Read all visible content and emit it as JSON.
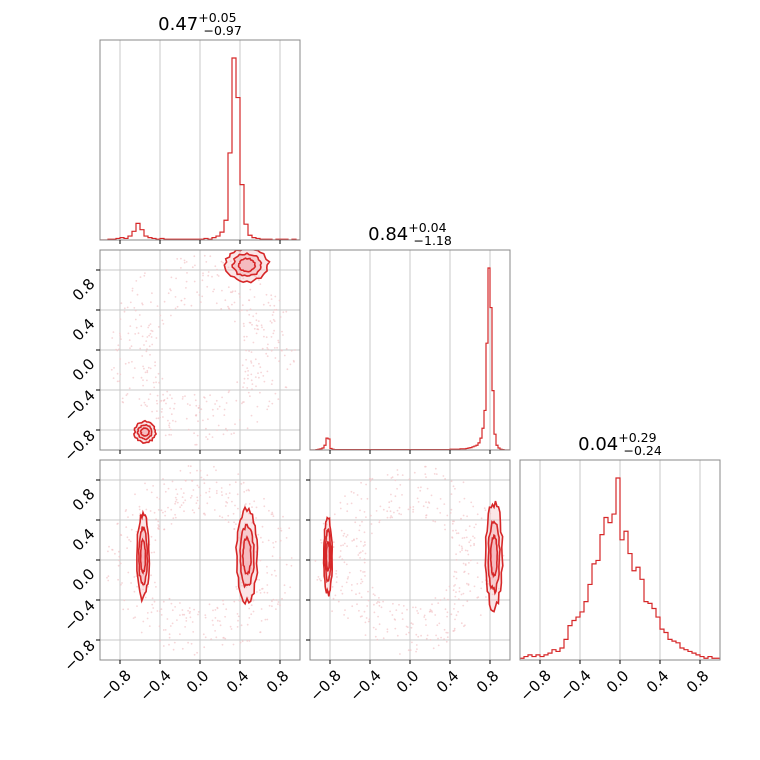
{
  "chart_data": {
    "type": "corner",
    "color": "#d62728",
    "fill_color": "#f4b6b9",
    "grid": true,
    "axis_range": [
      -1,
      1
    ],
    "ticks": [
      -0.8,
      -0.4,
      0.0,
      0.4,
      0.8
    ],
    "tick_labels": [
      "−0.8",
      "−0.4",
      "0.0",
      "0.4",
      "0.8"
    ],
    "diagonal": [
      {
        "title_value": "0.47",
        "title_plus": "+0.05",
        "title_minus": "−0.97",
        "bin_edges_start": -1.0,
        "bin_width": 0.04,
        "counts": [
          0,
          0,
          1,
          1,
          2,
          3,
          2,
          5,
          11,
          21,
          13,
          5,
          3,
          2,
          1,
          2,
          1,
          1,
          1,
          1,
          1,
          1,
          1,
          1,
          1,
          1,
          2,
          1,
          3,
          5,
          10,
          25,
          110,
          230,
          180,
          70,
          20,
          6,
          3,
          2,
          1,
          1,
          1,
          0,
          1,
          1,
          1,
          0,
          1,
          0
        ]
      },
      {
        "title_value": "0.84",
        "title_plus": "+0.04",
        "title_minus": "−1.18",
        "bin_edges_start": -1.0,
        "bin_width": 0.02,
        "counts": [
          0,
          0,
          0,
          1,
          2,
          3,
          5,
          12,
          30,
          28,
          4,
          2,
          1,
          1,
          1,
          1,
          1,
          1,
          1,
          1,
          1,
          1,
          1,
          1,
          1,
          1,
          1,
          1,
          1,
          1,
          1,
          1,
          1,
          1,
          1,
          1,
          1,
          1,
          1,
          1,
          1,
          1,
          1,
          1,
          1,
          1,
          1,
          1,
          1,
          1,
          1,
          1,
          1,
          1,
          1,
          1,
          1,
          1,
          1,
          1,
          1,
          1,
          1,
          1,
          1,
          1,
          1,
          1,
          1,
          1,
          2,
          2,
          2,
          2,
          2,
          3,
          3,
          3,
          4,
          5,
          6,
          8,
          10,
          12,
          18,
          30,
          55,
          100,
          270,
          460,
          360,
          150,
          40,
          12,
          5,
          2,
          1,
          0,
          0,
          0
        ]
      },
      {
        "title_value": "0.04",
        "title_plus": "+0.29",
        "title_minus": "−0.24",
        "bin_edges_start": -1.0,
        "bin_width": 0.04,
        "counts": [
          1,
          2,
          3,
          2,
          3,
          2,
          3,
          4,
          6,
          5,
          7,
          12,
          20,
          23,
          25,
          28,
          34,
          44,
          56,
          58,
          73,
          83,
          80,
          85,
          106,
          70,
          75,
          62,
          52,
          54,
          47,
          34,
          33,
          30,
          25,
          18,
          16,
          12,
          11,
          10,
          7,
          6,
          5,
          4,
          3,
          2,
          1,
          2,
          1,
          1
        ]
      }
    ],
    "pairs": [
      {
        "row": 1,
        "col": 0,
        "modes": [
          {
            "cx": 0.47,
            "cy": 0.85,
            "sx": 0.1,
            "sy": 0.08
          },
          {
            "cx": -0.55,
            "cy": -0.82,
            "sx": 0.05,
            "sy": 0.05
          }
        ]
      },
      {
        "row": 2,
        "col": 0,
        "modes": [
          {
            "cx": 0.47,
            "cy": 0.04,
            "sx": 0.05,
            "sy": 0.22
          },
          {
            "cx": -0.57,
            "cy": 0.04,
            "sx": 0.03,
            "sy": 0.2
          }
        ]
      },
      {
        "row": 2,
        "col": 1,
        "modes": [
          {
            "cx": 0.84,
            "cy": 0.04,
            "sx": 0.04,
            "sy": 0.25
          },
          {
            "cx": -0.82,
            "cy": 0.04,
            "sx": 0.02,
            "sy": 0.18
          }
        ]
      }
    ]
  }
}
